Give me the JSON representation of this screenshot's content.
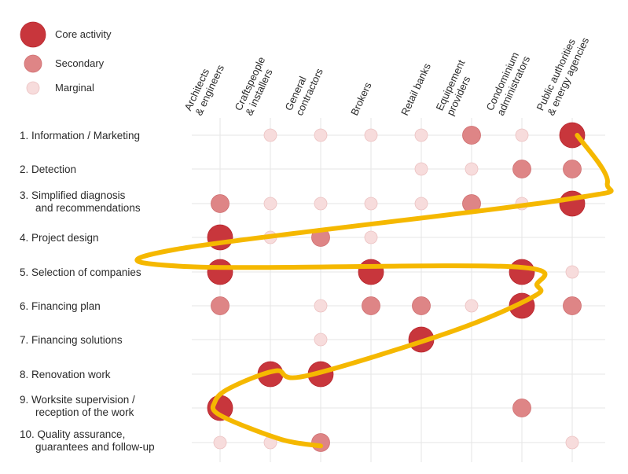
{
  "chart_data": {
    "type": "scatter",
    "legend": [
      {
        "level": "core",
        "label": "Core activity"
      },
      {
        "level": "secondary",
        "label": "Secondary"
      },
      {
        "level": "marginal",
        "label": "Marginal"
      }
    ],
    "columns": [
      [
        "Architects",
        "& engineers"
      ],
      [
        "Craftspeople",
        "& installers"
      ],
      [
        "General",
        "contractors"
      ],
      [
        "Brokers"
      ],
      [
        "Retail banks"
      ],
      [
        "Equipement",
        "providers"
      ],
      [
        "Condominium",
        "administrators"
      ],
      [
        "Public authorities",
        "& energy agencies"
      ]
    ],
    "rows": [
      [
        "1. Information / Marketing"
      ],
      [
        "2. Detection"
      ],
      [
        "3. Simplified diagnosis",
        "and recommendations"
      ],
      [
        "4. Project design"
      ],
      [
        "5. Selection of companies"
      ],
      [
        "6. Financing plan"
      ],
      [
        "7. Financing solutions"
      ],
      [
        "8. Renovation work"
      ],
      [
        "9. Worksite supervision /",
        "reception of the work"
      ],
      [
        "10. Quality assurance,",
        "guarantees and follow-up"
      ]
    ],
    "matrix_legend": "0 = none, 1 = marginal, 2 = secondary, 3 = core activity",
    "matrix": [
      [
        0,
        1,
        1,
        1,
        1,
        2,
        1,
        3
      ],
      [
        0,
        0,
        0,
        0,
        1,
        1,
        2,
        2
      ],
      [
        2,
        1,
        1,
        1,
        1,
        2,
        1,
        3
      ],
      [
        3,
        1,
        2,
        1,
        0,
        0,
        0,
        0
      ],
      [
        3,
        0,
        0,
        3,
        0,
        0,
        3,
        1
      ],
      [
        2,
        0,
        1,
        2,
        2,
        1,
        3,
        2
      ],
      [
        0,
        0,
        1,
        0,
        3,
        0,
        0,
        0
      ],
      [
        0,
        3,
        3,
        0,
        0,
        0,
        0,
        0
      ],
      [
        3,
        0,
        0,
        0,
        0,
        0,
        2,
        0
      ],
      [
        1,
        1,
        2,
        0,
        0,
        0,
        0,
        1
      ]
    ],
    "path_line": {
      "color": "#F5B800",
      "points": [
        [
          7.1,
          0.0
        ],
        [
          7.7,
          1.4
        ],
        [
          6.8,
          1.9
        ],
        [
          -0.9,
          3.35
        ],
        [
          -0.6,
          3.85
        ],
        [
          5.8,
          3.85
        ],
        [
          6.3,
          4.4
        ],
        [
          6.2,
          4.75
        ],
        [
          4.6,
          5.75
        ],
        [
          1.7,
          7.05
        ],
        [
          1.1,
          6.9
        ],
        [
          0.2,
          7.4
        ],
        [
          -0.1,
          7.8
        ],
        [
          0.0,
          8.2
        ],
        [
          1.2,
          8.9
        ],
        [
          2.0,
          9.1
        ]
      ]
    },
    "colors": {
      "core": "#C8363C",
      "secondary": "#DE8586",
      "marginal": "#F7DCDC",
      "grid": "#E6E6E6"
    }
  }
}
